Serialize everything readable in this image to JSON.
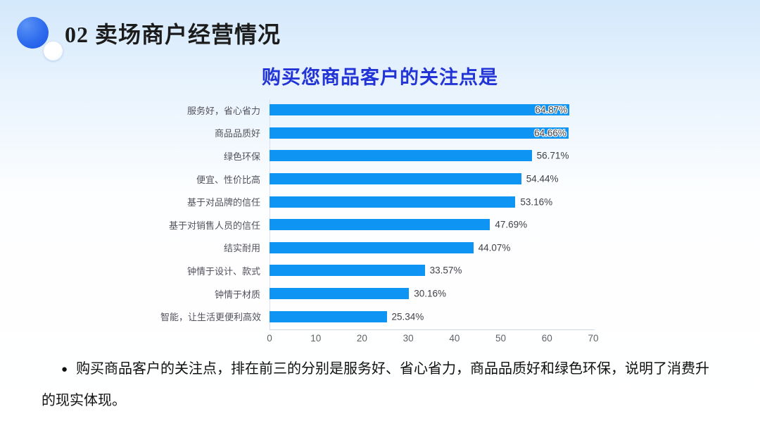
{
  "header": {
    "title": "02 卖场商户经营情况"
  },
  "chart": {
    "title": "购买您商品客户的关注点是"
  },
  "chart_data": {
    "type": "bar",
    "orientation": "horizontal",
    "title": "购买您商品客户的关注点是",
    "categories": [
      "服务好，省心省力",
      "商品品质好",
      "绿色环保",
      "便宜、性价比高",
      "基于对品牌的信任",
      "基于对销售人员的信任",
      "结实耐用",
      "钟情于设计、款式",
      "钟情于材质",
      "智能，让生活更便利高效"
    ],
    "values": [
      64.87,
      64.66,
      56.71,
      54.44,
      53.16,
      47.69,
      44.07,
      33.57,
      30.16,
      25.34
    ],
    "value_format": "percent",
    "xlim": [
      0,
      70
    ],
    "x_ticks": [
      0,
      10,
      20,
      30,
      40,
      50,
      60,
      70
    ],
    "grid": false,
    "legend": "none",
    "bar_color": "#0e95f3"
  },
  "note": {
    "bullet": "●",
    "text": "购买商品客户的关注点，排在前三的分别是服务好、省心省力，商品品质好和绿色环保，说明了消费升的现实体现。"
  },
  "colors": {
    "background_top": "#d3e8fb",
    "background_bottom": "#ffffff",
    "chart_title": "#2234d6",
    "bar": "#0e95f3",
    "header_text": "#1c1c1c",
    "axis_line": "#d7e0ee"
  }
}
